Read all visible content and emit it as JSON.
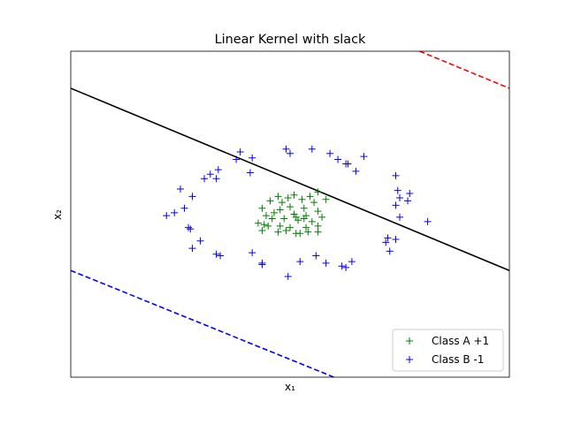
{
  "chart_data": {
    "type": "scatter",
    "title": "Linear Kernel with slack",
    "xlabel": "x₁",
    "ylabel": "x₂",
    "xlim": [
      -1.1,
      1.1
    ],
    "ylim": [
      -1.1,
      1.1
    ],
    "grid": false,
    "legend_position": "bottom-right",
    "ticks_visible": false,
    "series": [
      {
        "name": "Class A +1",
        "marker": "+",
        "color": "#008000",
        "points": [
          [
            -0.04,
            0.08
          ],
          [
            0.02,
            0.13
          ],
          [
            0.06,
            0.1
          ],
          [
            -0.06,
            0.12
          ],
          [
            0.14,
            0.15
          ],
          [
            0.12,
            0.08
          ],
          [
            0.18,
            0.1
          ],
          [
            0.07,
            0.04
          ],
          [
            0.0,
            0.05
          ],
          [
            -0.05,
            0.03
          ],
          [
            -0.1,
            0.09
          ],
          [
            -0.14,
            0.04
          ],
          [
            -0.08,
            0.01
          ],
          [
            0.03,
            -0.02
          ],
          [
            0.08,
            -0.01
          ],
          [
            0.14,
            0.02
          ],
          [
            0.16,
            -0.02
          ],
          [
            -0.12,
            -0.01
          ],
          [
            -0.09,
            -0.03
          ],
          [
            -0.03,
            -0.03
          ],
          [
            0.04,
            -0.04
          ],
          [
            0.11,
            -0.05
          ],
          [
            -0.16,
            -0.06
          ],
          [
            -0.11,
            -0.08
          ],
          [
            -0.05,
            -0.08
          ],
          [
            0.0,
            -0.09
          ],
          [
            0.08,
            -0.09
          ],
          [
            0.14,
            -0.08
          ],
          [
            -0.14,
            -0.11
          ],
          [
            -0.06,
            -0.12
          ],
          [
            -0.02,
            -0.11
          ],
          [
            0.03,
            -0.13
          ],
          [
            0.09,
            -0.12
          ],
          [
            0.14,
            -0.12
          ],
          [
            0.07,
            -0.03
          ],
          [
            0.02,
            0.0
          ],
          [
            -0.01,
            0.11
          ],
          [
            0.1,
            0.12
          ],
          [
            -0.13,
            -0.07
          ],
          [
            0.05,
            -0.13
          ]
        ]
      },
      {
        "name": "Class B -1",
        "marker": "+",
        "color": "#0000ff",
        "points": [
          [
            -0.02,
            0.44
          ],
          [
            0.0,
            0.41
          ],
          [
            0.11,
            0.44
          ],
          [
            0.2,
            0.41
          ],
          [
            0.24,
            0.37
          ],
          [
            0.29,
            0.34
          ],
          [
            0.37,
            0.39
          ],
          [
            -0.25,
            0.42
          ],
          [
            -0.19,
            0.38
          ],
          [
            -0.27,
            0.37
          ],
          [
            0.28,
            0.34
          ],
          [
            -0.2,
            0.28
          ],
          [
            -0.36,
            0.3
          ],
          [
            -0.4,
            0.27
          ],
          [
            -0.43,
            0.24
          ],
          [
            -0.37,
            0.24
          ],
          [
            0.53,
            0.26
          ],
          [
            0.54,
            0.16
          ],
          [
            -0.55,
            0.17
          ],
          [
            -0.49,
            0.12
          ],
          [
            0.55,
            0.11
          ],
          [
            0.6,
            0.14
          ],
          [
            0.59,
            0.09
          ],
          [
            0.53,
            0.06
          ],
          [
            -0.53,
            0.04
          ],
          [
            -0.58,
            0.01
          ],
          [
            -0.62,
            -0.01
          ],
          [
            0.55,
            -0.02
          ],
          [
            0.69,
            -0.05
          ],
          [
            -0.51,
            -0.09
          ],
          [
            -0.5,
            -0.1
          ],
          [
            0.49,
            -0.16
          ],
          [
            0.48,
            -0.19
          ],
          [
            0.53,
            -0.17
          ],
          [
            -0.45,
            -0.18
          ],
          [
            -0.49,
            -0.23
          ],
          [
            0.5,
            -0.25
          ],
          [
            -0.37,
            -0.27
          ],
          [
            -0.35,
            -0.28
          ],
          [
            -0.19,
            -0.26
          ],
          [
            0.13,
            -0.28
          ],
          [
            0.31,
            -0.32
          ],
          [
            -0.14,
            -0.33
          ],
          [
            -0.14,
            -0.34
          ],
          [
            0.05,
            -0.32
          ],
          [
            0.18,
            -0.33
          ],
          [
            0.26,
            -0.35
          ],
          [
            0.28,
            -0.36
          ],
          [
            -0.01,
            -0.42
          ],
          [
            0.33,
            0.29
          ]
        ]
      }
    ],
    "lines": [
      {
        "label": "decision boundary",
        "style": "solid",
        "color": "#000000",
        "x": [
          -1.1,
          1.1
        ],
        "y": [
          0.85,
          -0.38
        ]
      },
      {
        "label": "margin +",
        "style": "dashed",
        "color": "#ff0000",
        "x": [
          0.65,
          1.1
        ],
        "y": [
          1.1,
          0.85
        ]
      },
      {
        "label": "margin -",
        "style": "dashed",
        "color": "#0000ff",
        "x": [
          -1.1,
          0.22
        ],
        "y": [
          -0.38,
          -1.1
        ]
      }
    ]
  }
}
